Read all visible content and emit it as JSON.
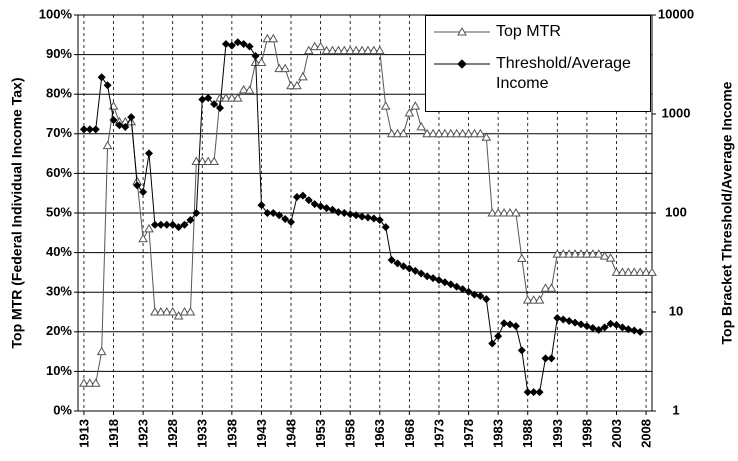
{
  "chart_data": {
    "type": "line",
    "y_label": "Top MTR (Federal Individual Income Tax)",
    "y2_label": "Top Bracket Threshold/Average Income",
    "x": [
      1913,
      1914,
      1915,
      1916,
      1917,
      1918,
      1919,
      1920,
      1921,
      1922,
      1923,
      1924,
      1925,
      1926,
      1927,
      1928,
      1929,
      1930,
      1931,
      1932,
      1933,
      1934,
      1935,
      1936,
      1937,
      1938,
      1939,
      1940,
      1941,
      1942,
      1943,
      1944,
      1945,
      1946,
      1947,
      1948,
      1949,
      1950,
      1951,
      1952,
      1953,
      1954,
      1955,
      1956,
      1957,
      1958,
      1959,
      1960,
      1961,
      1962,
      1963,
      1964,
      1965,
      1966,
      1967,
      1968,
      1969,
      1970,
      1971,
      1972,
      1973,
      1974,
      1975,
      1976,
      1977,
      1978,
      1979,
      1980,
      1981,
      1982,
      1983,
      1984,
      1985,
      1986,
      1987,
      1988,
      1989,
      1990,
      1991,
      1992,
      1993,
      1994,
      1995,
      1996,
      1997,
      1998,
      1999,
      2000,
      2001,
      2002,
      2003,
      2004,
      2005,
      2006,
      2007,
      2008,
      2009
    ],
    "series": [
      {
        "name": "Top MTR",
        "color": "#555555",
        "marker": "triangle",
        "values": [
          7,
          7,
          7,
          15,
          67,
          77,
          73,
          73,
          73,
          58,
          43.5,
          46,
          25,
          25,
          25,
          25,
          24,
          25,
          25,
          63,
          63,
          63,
          63,
          79,
          79,
          79,
          79,
          81.1,
          81,
          88,
          88,
          94,
          94,
          86.45,
          86.45,
          82.13,
          82.13,
          84.36,
          91,
          92,
          92,
          91,
          91,
          91,
          91,
          91,
          91,
          91,
          91,
          91,
          91,
          77,
          70,
          70,
          70,
          75.25,
          77,
          71.75,
          70,
          70,
          70,
          70,
          70,
          70,
          70,
          70,
          70,
          70,
          69.125,
          50,
          50,
          50,
          50,
          50,
          38.5,
          28,
          28,
          28,
          31,
          31,
          39.6,
          39.6,
          39.6,
          39.6,
          39.6,
          39.6,
          39.6,
          39.6,
          39.1,
          38.6,
          35,
          35,
          35,
          35,
          35,
          35,
          35
        ]
      },
      {
        "name": "Threshold/Average Income",
        "color": "#000000",
        "marker": "diamond",
        "axis": "y2",
        "values": [
          700,
          700,
          700,
          2350,
          1950,
          870,
          770,
          740,
          930,
          190,
          163,
          400,
          76,
          76,
          76,
          76,
          72,
          76,
          85,
          100,
          1400,
          1450,
          1260,
          1150,
          5100,
          4900,
          5300,
          5100,
          4800,
          3850,
          120,
          100,
          100,
          95,
          87,
          81,
          145,
          150,
          135,
          123,
          117,
          112,
          108,
          102,
          100,
          97,
          95,
          92,
          90,
          88,
          85,
          72,
          33.5,
          31,
          29,
          27.5,
          26,
          24.5,
          23,
          22,
          21,
          20,
          19,
          18,
          17,
          16,
          15,
          14.5,
          13.5,
          4.8,
          5.7,
          7.7,
          7.5,
          7.2,
          4.1,
          1.55,
          1.55,
          1.55,
          3.4,
          3.4,
          8.7,
          8.4,
          8.1,
          7.8,
          7.5,
          7.2,
          6.9,
          6.6,
          7.0,
          7.6,
          7.4,
          7.0,
          6.7,
          6.5,
          6.3,
          null,
          null
        ]
      }
    ],
    "xlim": [
      1912,
      2009
    ],
    "xticks": [
      1913,
      1918,
      1923,
      1928,
      1933,
      1938,
      1943,
      1948,
      1953,
      1958,
      1963,
      1968,
      1973,
      1978,
      1983,
      1988,
      1993,
      1998,
      2003,
      2008
    ],
    "ylim": [
      0,
      100
    ],
    "yticks": [
      {
        "value": 0,
        "label": "0%"
      },
      {
        "value": 10,
        "label": "10%"
      },
      {
        "value": 20,
        "label": "20%"
      },
      {
        "value": 30,
        "label": "30%"
      },
      {
        "value": 40,
        "label": "40%"
      },
      {
        "value": 50,
        "label": "50%"
      },
      {
        "value": 60,
        "label": "60%"
      },
      {
        "value": 70,
        "label": "70%"
      },
      {
        "value": 80,
        "label": "80%"
      },
      {
        "value": 90,
        "label": "90%"
      },
      {
        "value": 100,
        "label": "100%"
      }
    ],
    "y2lim": [
      1,
      10000
    ],
    "y2log": true,
    "y2ticks": [
      1,
      10,
      100,
      1000,
      10000
    ],
    "grid": true
  }
}
